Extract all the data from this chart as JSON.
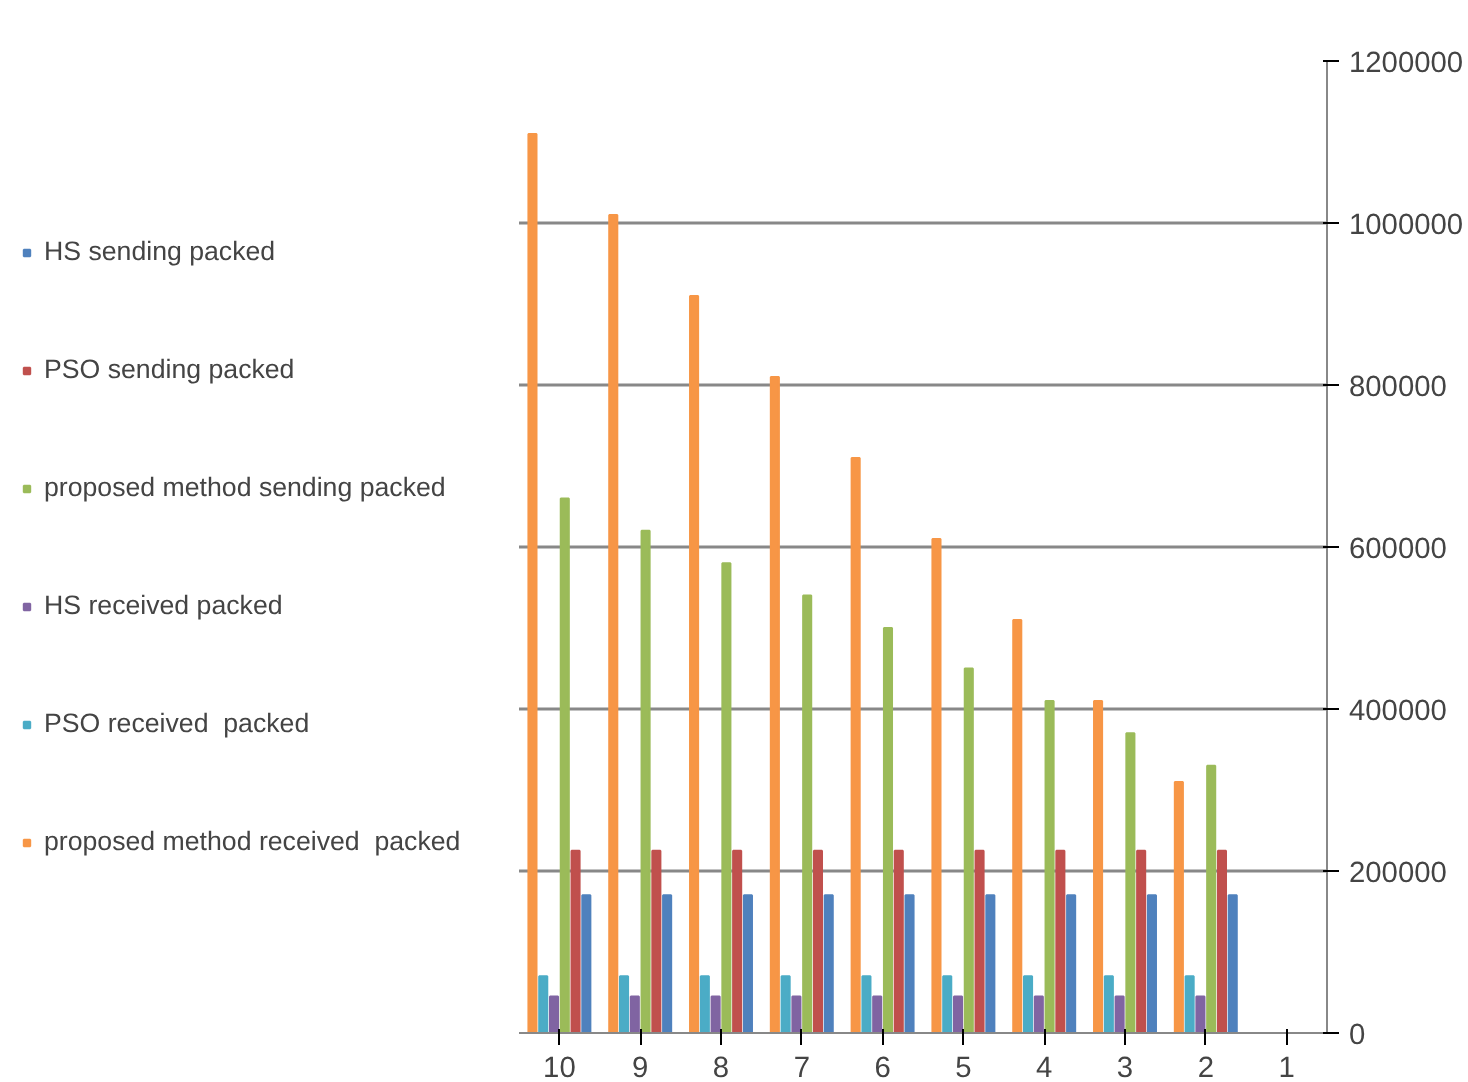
{
  "chart_data": {
    "type": "bar",
    "categories": [
      "10",
      "9",
      "8",
      "7",
      "6",
      "5",
      "4",
      "3",
      "2",
      "1"
    ],
    "series": [
      {
        "name": "HS sending packed",
        "color": "#4f81bd",
        "values": [
          170000,
          170000,
          170000,
          170000,
          170000,
          170000,
          170000,
          170000,
          170000,
          null
        ]
      },
      {
        "name": "PSO sending packed",
        "color": "#c0504d",
        "values": [
          225000,
          225000,
          225000,
          225000,
          225000,
          225000,
          225000,
          225000,
          225000,
          null
        ]
      },
      {
        "name": "proposed method sending packed",
        "color": "#9bbb59",
        "values": [
          660000,
          620000,
          580000,
          540000,
          500000,
          450000,
          410000,
          370000,
          330000,
          null
        ]
      },
      {
        "name": "HS received packed",
        "color": "#8064a2",
        "values": [
          45000,
          45000,
          45000,
          45000,
          45000,
          45000,
          45000,
          45000,
          45000,
          null
        ]
      },
      {
        "name": "PSO received  packed",
        "color": "#4bacc6",
        "values": [
          70000,
          70000,
          70000,
          70000,
          70000,
          70000,
          70000,
          70000,
          70000,
          null
        ]
      },
      {
        "name": "proposed method received  packed",
        "color": "#f79646",
        "values": [
          1110000,
          1010000,
          910000,
          810000,
          710000,
          610000,
          510000,
          410000,
          310000,
          null
        ]
      }
    ],
    "ylim": [
      0,
      1200000
    ],
    "yticks": [
      0,
      200000,
      400000,
      600000,
      800000,
      1000000,
      1200000
    ],
    "grid": "y",
    "legend": "left"
  }
}
